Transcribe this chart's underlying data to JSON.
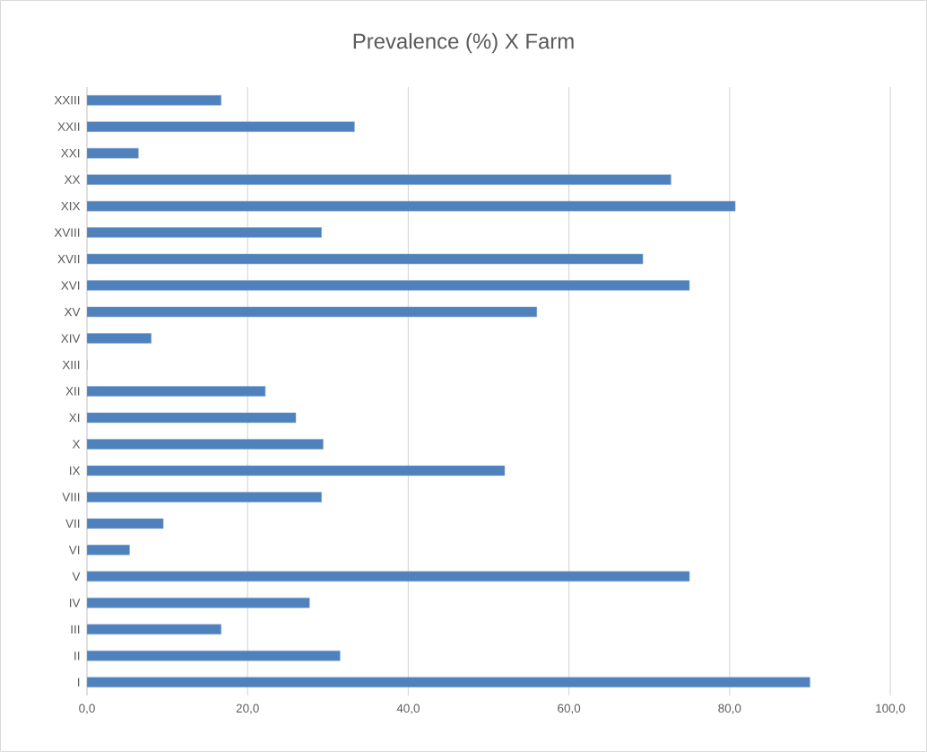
{
  "chart_data": {
    "type": "bar",
    "orientation": "horizontal",
    "title": "Prevalence (%) X Farm",
    "categories": [
      "XXIII",
      "XXII",
      "XXI",
      "XX",
      "XIX",
      "XVIII",
      "XVII",
      "XVI",
      "XV",
      "XIV",
      "XIII",
      "XII",
      "XI",
      "X",
      "IX",
      "VIII",
      "VII",
      "VI",
      "V",
      "IV",
      "III",
      "II",
      "I"
    ],
    "values": [
      16.7,
      33.3,
      6.4,
      72.7,
      80.7,
      29.2,
      69.2,
      75.0,
      56.0,
      8.0,
      0,
      22.2,
      26.0,
      29.4,
      52.0,
      29.2,
      9.5,
      5.3,
      75.0,
      27.7,
      16.7,
      31.5,
      90.0
    ],
    "color": "#4f81bd",
    "xlim": [
      0,
      100
    ],
    "xticks": [
      {
        "value": 0,
        "label": "0,0"
      },
      {
        "value": 20,
        "label": "20,0"
      },
      {
        "value": 40,
        "label": "40,0"
      },
      {
        "value": 60,
        "label": "60,0"
      },
      {
        "value": 80,
        "label": "80,0"
      },
      {
        "value": 100,
        "label": "100,0"
      }
    ],
    "grid": "x"
  }
}
